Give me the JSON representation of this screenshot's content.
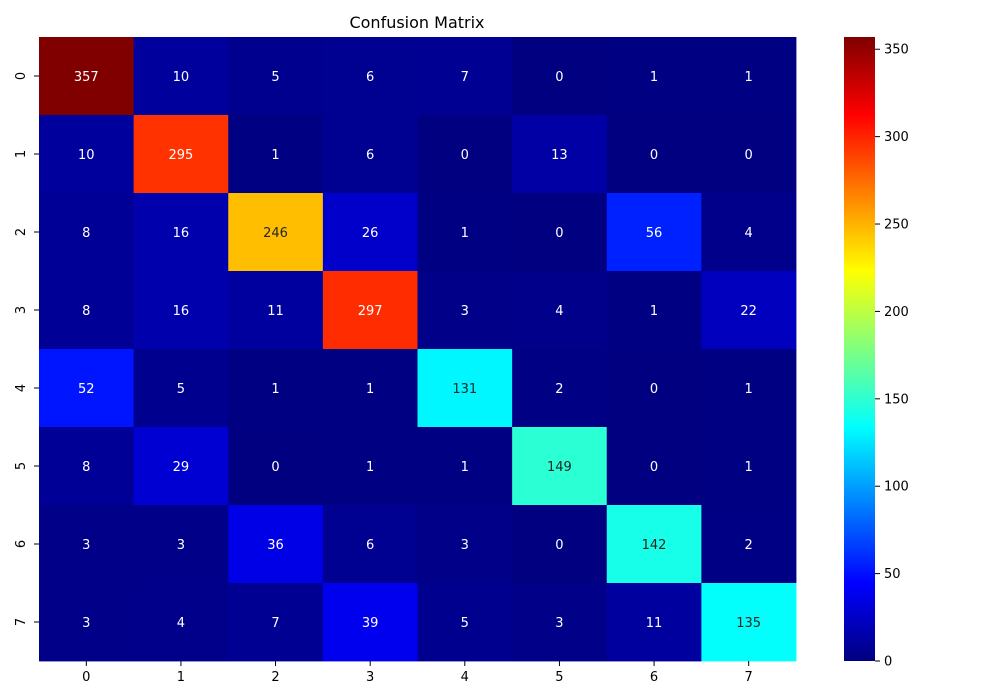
{
  "chart_data": {
    "type": "heatmap",
    "title": "Confusion Matrix",
    "xlabel": "",
    "ylabel": "",
    "x_categories": [
      "0",
      "1",
      "2",
      "3",
      "4",
      "5",
      "6",
      "7"
    ],
    "y_categories": [
      "0",
      "1",
      "2",
      "3",
      "4",
      "5",
      "6",
      "7"
    ],
    "values": [
      [
        357,
        10,
        5,
        6,
        7,
        0,
        1,
        1
      ],
      [
        10,
        295,
        1,
        6,
        0,
        13,
        0,
        0
      ],
      [
        8,
        16,
        246,
        26,
        1,
        0,
        56,
        4
      ],
      [
        8,
        16,
        11,
        297,
        3,
        4,
        1,
        22
      ],
      [
        52,
        5,
        1,
        1,
        131,
        2,
        0,
        1
      ],
      [
        8,
        29,
        0,
        1,
        1,
        149,
        0,
        1
      ],
      [
        3,
        3,
        36,
        6,
        3,
        0,
        142,
        2
      ],
      [
        3,
        4,
        7,
        39,
        5,
        3,
        11,
        135
      ]
    ],
    "colormap": "jet",
    "vmin": 0,
    "vmax": 357,
    "colorbar_ticks": [
      0,
      50,
      100,
      150,
      200,
      250,
      300,
      350
    ],
    "colorbar_tick_labels": [
      "0",
      "50",
      "100",
      "150",
      "200",
      "250",
      "300",
      "350"
    ],
    "annotate_cells": true
  }
}
